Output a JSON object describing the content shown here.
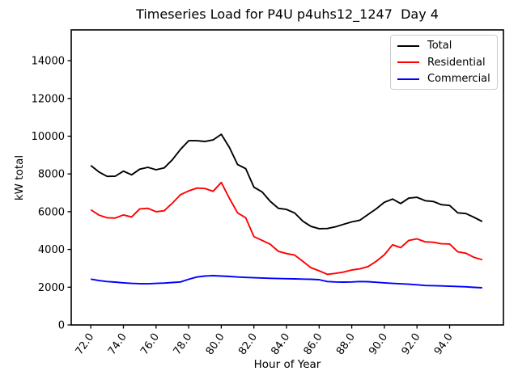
{
  "window": {
    "background": "#ffffff"
  },
  "chart_data": {
    "type": "line",
    "title": "Timeseries Load for P4U p4uhs12_1247  Day 4",
    "xlabel": "Hour of Year",
    "ylabel": "kW total",
    "xlim": [
      70.8,
      97.3
    ],
    "ylim": [
      0,
      15630
    ],
    "grid": false,
    "legend_position": "upper right",
    "legend_border_color": "#cccccc",
    "axis_color": "#000000",
    "xticks": {
      "values": [
        72,
        74,
        76,
        78,
        80,
        82,
        84,
        86,
        88,
        90,
        92,
        94
      ],
      "labels": [
        "72.0",
        "74.0",
        "76.0",
        "78.0",
        "80.0",
        "82.0",
        "84.0",
        "86.0",
        "88.0",
        "90.0",
        "92.0",
        "94.0"
      ]
    },
    "yticks": {
      "values": [
        0,
        2000,
        4000,
        6000,
        8000,
        10000,
        12000,
        14000
      ],
      "labels": [
        "0",
        "2000",
        "4000",
        "6000",
        "8000",
        "10000",
        "12000",
        "14000"
      ]
    },
    "x": [
      72,
      72.5,
      73,
      73.5,
      74,
      74.5,
      75,
      75.5,
      76,
      76.5,
      77,
      77.5,
      78,
      78.5,
      79,
      79.5,
      80,
      80.5,
      81,
      81.5,
      82,
      82.5,
      83,
      83.5,
      84,
      84.5,
      85,
      85.5,
      86,
      86.5,
      87,
      87.5,
      88,
      88.5,
      89,
      89.5,
      90,
      90.5,
      91,
      91.5,
      92,
      92.5,
      93,
      93.5,
      94,
      94.5,
      95,
      95.5,
      96
    ],
    "series": [
      {
        "name": "Total",
        "color": "#000000",
        "values": [
          8450,
          8100,
          7870,
          7880,
          8150,
          7950,
          8250,
          8350,
          8220,
          8320,
          8750,
          9300,
          9760,
          9760,
          9720,
          9800,
          10100,
          9400,
          8500,
          8280,
          7300,
          7050,
          6550,
          6180,
          6120,
          5930,
          5500,
          5220,
          5100,
          5110,
          5200,
          5330,
          5460,
          5550,
          5850,
          6150,
          6500,
          6670,
          6430,
          6720,
          6760,
          6580,
          6540,
          6370,
          6330,
          5940,
          5900,
          5700,
          5480
        ]
      },
      {
        "name": "Residential",
        "color": "#ff0000",
        "values": [
          6100,
          5820,
          5680,
          5660,
          5830,
          5720,
          6150,
          6180,
          6000,
          6050,
          6450,
          6900,
          7100,
          7250,
          7230,
          7080,
          7550,
          6700,
          5940,
          5680,
          4680,
          4480,
          4280,
          3900,
          3780,
          3700,
          3370,
          3030,
          2870,
          2680,
          2730,
          2800,
          2910,
          2970,
          3090,
          3370,
          3720,
          4250,
          4100,
          4480,
          4560,
          4400,
          4380,
          4300,
          4290,
          3870,
          3800,
          3580,
          3450
        ]
      },
      {
        "name": "Commercial",
        "color": "#0000ff",
        "values": [
          2430,
          2350,
          2300,
          2270,
          2230,
          2200,
          2190,
          2180,
          2200,
          2220,
          2250,
          2280,
          2420,
          2540,
          2590,
          2610,
          2590,
          2570,
          2540,
          2520,
          2500,
          2490,
          2470,
          2460,
          2450,
          2440,
          2430,
          2420,
          2400,
          2300,
          2280,
          2270,
          2280,
          2300,
          2290,
          2260,
          2230,
          2200,
          2180,
          2160,
          2130,
          2090,
          2080,
          2070,
          2050,
          2040,
          2020,
          1990,
          1970
        ]
      }
    ]
  }
}
